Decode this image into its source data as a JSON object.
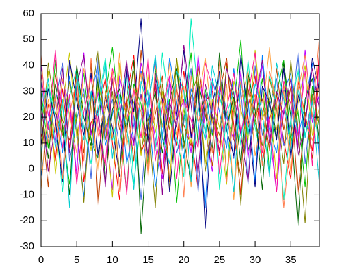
{
  "chart_data": {
    "type": "line",
    "x": [
      0,
      1,
      2,
      3,
      4,
      5,
      6,
      7,
      8,
      9,
      10,
      11,
      12,
      13,
      14,
      15,
      16,
      17,
      18,
      19,
      20,
      21,
      22,
      23,
      24,
      25,
      26,
      27,
      28,
      29,
      30,
      31,
      32,
      33,
      34,
      35,
      36,
      37,
      38,
      39
    ],
    "xlim": [
      0,
      39
    ],
    "xticks": [
      0,
      5,
      10,
      15,
      20,
      25,
      30,
      35
    ],
    "ylim": [
      -30,
      60
    ],
    "yticks": [
      -30,
      -20,
      -10,
      0,
      10,
      20,
      30,
      40,
      50,
      60
    ],
    "series": [
      {
        "color": "#ff0000",
        "values": [
          12,
          25,
          3,
          31,
          8,
          40,
          -5,
          18,
          22,
          35,
          10,
          -12,
          28,
          44,
          6,
          15,
          33,
          -2,
          20,
          9,
          38,
          14,
          -8,
          26,
          30,
          5,
          41,
          17,
          -10,
          24,
          36,
          2,
          19,
          29,
          11,
          -4,
          34,
          21,
          7,
          46
        ]
      },
      {
        "color": "#00c000",
        "values": [
          30,
          8,
          42,
          15,
          -6,
          22,
          37,
          11,
          4,
          28,
          47,
          19,
          -9,
          33,
          25,
          1,
          39,
          16,
          27,
          -13,
          20,
          45,
          9,
          31,
          13,
          38,
          -3,
          24,
          50,
          7,
          18,
          35,
          -1,
          29,
          42,
          10,
          23,
          -7,
          32,
          16
        ]
      },
      {
        "color": "#0080ff",
        "values": [
          -3,
          18,
          27,
          6,
          36,
          14,
          -11,
          29,
          40,
          9,
          21,
          33,
          2,
          17,
          38,
          24,
          -7,
          12,
          43,
          26,
          4,
          31,
          19,
          -15,
          35,
          22,
          8,
          39,
          13,
          27,
          -5,
          44,
          16,
          6,
          30,
          37,
          12,
          25,
          41,
          3
        ]
      },
      {
        "color": "#c000ff",
        "values": [
          40,
          21,
          10,
          34,
          25,
          -2,
          45,
          13,
          30,
          17,
          -8,
          36,
          22,
          9,
          41,
          28,
          12,
          -4,
          35,
          19,
          27,
          6,
          44,
          15,
          -1,
          32,
          20,
          11,
          38,
          4,
          26,
          40,
          14,
          -9,
          23,
          31,
          8,
          46,
          18,
          29
        ]
      },
      {
        "color": "#00eebb",
        "values": [
          5,
          33,
          20,
          -9,
          28,
          39,
          16,
          2,
          25,
          43,
          11,
          24,
          37,
          -6,
          19,
          31,
          7,
          45,
          23,
          12,
          -3,
          58,
          28,
          14,
          34,
          -8,
          21,
          30,
          9,
          42,
          16,
          3,
          36,
          25,
          -12,
          20,
          39,
          13,
          27,
          8
        ]
      },
      {
        "color": "#c04000",
        "values": [
          22,
          -7,
          37,
          19,
          11,
          30,
          6,
          41,
          -14,
          23,
          34,
          15,
          27,
          3,
          46,
          10,
          21,
          36,
          -5,
          31,
          17,
          9,
          40,
          24,
          1,
          29,
          43,
          12,
          -3,
          35,
          20,
          27,
          7,
          39,
          15,
          32,
          -10,
          22,
          4,
          37
        ]
      },
      {
        "color": "#c8c800",
        "values": [
          16,
          38,
          -2,
          24,
          45,
          12,
          29,
          7,
          33,
          20,
          -11,
          41,
          18,
          26,
          5,
          37,
          14,
          30,
          -8,
          43,
          22,
          10,
          35,
          2,
          27,
          16,
          -6,
          34,
          23,
          11,
          46,
          19,
          28,
          -4,
          33,
          8,
          25,
          40,
          13,
          21
        ]
      },
      {
        "color": "#4169e1",
        "values": [
          34,
          12,
          26,
          41,
          3,
          19,
          31,
          -4,
          44,
          15,
          27,
          8,
          38,
          20,
          -12,
          25,
          42,
          11,
          33,
          6,
          18,
          39,
          -9,
          29,
          14,
          37,
          22,
          4,
          31,
          -6,
          40,
          13,
          24,
          35,
          9,
          17,
          45,
          2,
          28,
          34
        ]
      },
      {
        "color": "#ffa040",
        "values": [
          -8,
          27,
          14,
          35,
          21,
          6,
          39,
          24,
          -1,
          30,
          12,
          45,
          9,
          22,
          37,
          -3,
          28,
          16,
          41,
          13,
          32,
          -7,
          25,
          43,
          18,
          10,
          33,
          -12,
          26,
          38,
          5,
          21,
          47,
          15,
          30,
          -2,
          36,
          19,
          11,
          24
        ]
      },
      {
        "color": "#006400",
        "values": [
          25,
          4,
          33,
          17,
          -10,
          40,
          20,
          9,
          36,
          -5,
          23,
          31,
          14,
          42,
          -25,
          18,
          30,
          6,
          26,
          39,
          11,
          -4,
          34,
          21,
          8,
          45,
          16,
          28,
          2,
          37,
          23,
          -8,
          31,
          12,
          41,
          20,
          -22,
          27,
          35,
          10
        ]
      },
      {
        "color": "#000080",
        "values": [
          9,
          31,
          19,
          -5,
          42,
          26,
          13,
          37,
          4,
          28,
          16,
          -3,
          40,
          22,
          58,
          10,
          35,
          27,
          -9,
          21,
          46,
          12,
          33,
          -23,
          25,
          38,
          15,
          5,
          44,
          20,
          -7,
          32,
          26,
          11,
          39,
          4,
          29,
          16,
          43,
          30
        ]
      },
      {
        "color": "#ff1493",
        "values": [
          37,
          15,
          46,
          8,
          29,
          -6,
          22,
          35,
          17,
          1,
          39,
          25,
          -10,
          31,
          12,
          43,
          3,
          24,
          36,
          -4,
          27,
          19,
          8,
          41,
          32,
          -2,
          23,
          37,
          14,
          28,
          45,
          6,
          20,
          -9,
          34,
          25,
          12,
          38,
          1,
          44
        ]
      },
      {
        "color": "#808000",
        "values": [
          2,
          41,
          22,
          13,
          34,
          18,
          -13,
          27,
          46,
          11,
          30,
          -2,
          25,
          38,
          7,
          20,
          -15,
          33,
          15,
          43,
          8,
          28,
          37,
          -1,
          21,
          13,
          40,
          26,
          -14,
          31,
          18,
          9,
          35,
          23,
          2,
          42,
          14,
          -21,
          29,
          17
        ]
      },
      {
        "color": "#8b008b",
        "values": [
          28,
          -1,
          17,
          39,
          6,
          32,
          44,
          14,
          23,
          -7,
          35,
          19,
          42,
          10,
          29,
          4,
          37,
          -10,
          26,
          16,
          48,
          25,
          -2,
          33,
          20,
          7,
          39,
          29,
          13,
          -5,
          27,
          42,
          10,
          30,
          21,
          35,
          5,
          18,
          39,
          23
        ]
      },
      {
        "color": "#00ced1",
        "values": [
          19,
          35,
          8,
          27,
          -15,
          37,
          11,
          30,
          20,
          41,
          4,
          29,
          16,
          -8,
          34,
          23,
          44,
          13,
          2,
          38,
          30,
          -5,
          24,
          11,
          40,
          28,
          17,
          -9,
          35,
          13,
          33,
          22,
          -3,
          41,
          27,
          7,
          32,
          12,
          26,
          -6
        ]
      },
      {
        "color": "#ff7f50",
        "values": [
          44,
          10,
          29,
          -4,
          21,
          35,
          3,
          43,
          12,
          26,
          38,
          -9,
          18,
          31,
          22,
          -2,
          40,
          25,
          9,
          33,
          -11,
          36,
          18,
          27,
          6,
          42,
          -5,
          22,
          34,
          16,
          29,
          1,
          38,
          26,
          -15,
          12,
          30,
          44,
          20,
          51
        ]
      }
    ]
  }
}
